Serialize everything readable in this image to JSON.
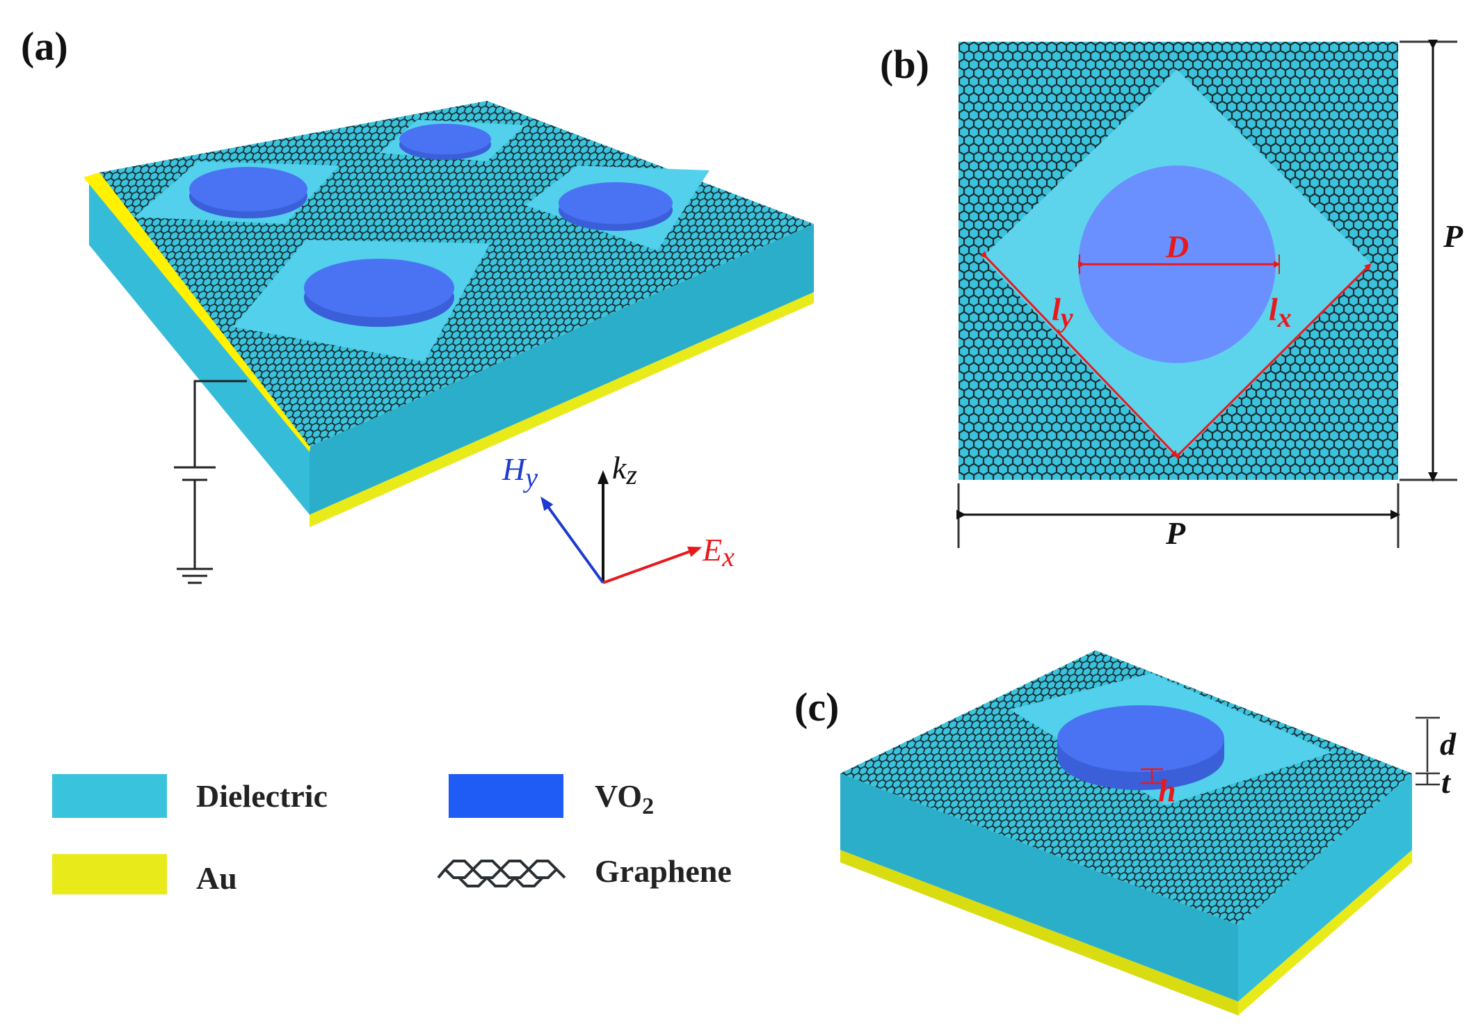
{
  "panels": {
    "a": {
      "label": "(a)"
    },
    "b": {
      "label": "(b)",
      "dim_P_right": "P",
      "dim_P_bottom": "P",
      "dim_D": "D",
      "dim_ly_main": "l",
      "dim_ly_sub": "y",
      "dim_lx_main": "l",
      "dim_lx_sub": "x"
    },
    "c": {
      "label": "(c)",
      "dim_d": "d",
      "dim_t": "t",
      "dim_h": "h"
    }
  },
  "axes": {
    "k_main": "k",
    "k_sub": "z",
    "h_main": "H",
    "h_sub": "y",
    "e_main": "E",
    "e_sub": "x"
  },
  "legend": {
    "dielectric": "Dielectric",
    "au": "Au",
    "vo2_main": "VO",
    "vo2_sub": "2",
    "graphene": "Graphene"
  },
  "colors": {
    "dielectric": "#3ac3dc",
    "dielectric_side": "#2aaec9",
    "gold": "#e8ea1a",
    "vo2": "#4a73f4",
    "vo2_side": "#3a5fd8",
    "graphene_line": "#1a2a30",
    "dim_red": "#e8191c",
    "h_blue": "#1c3ad0",
    "k_black": "#111111"
  }
}
